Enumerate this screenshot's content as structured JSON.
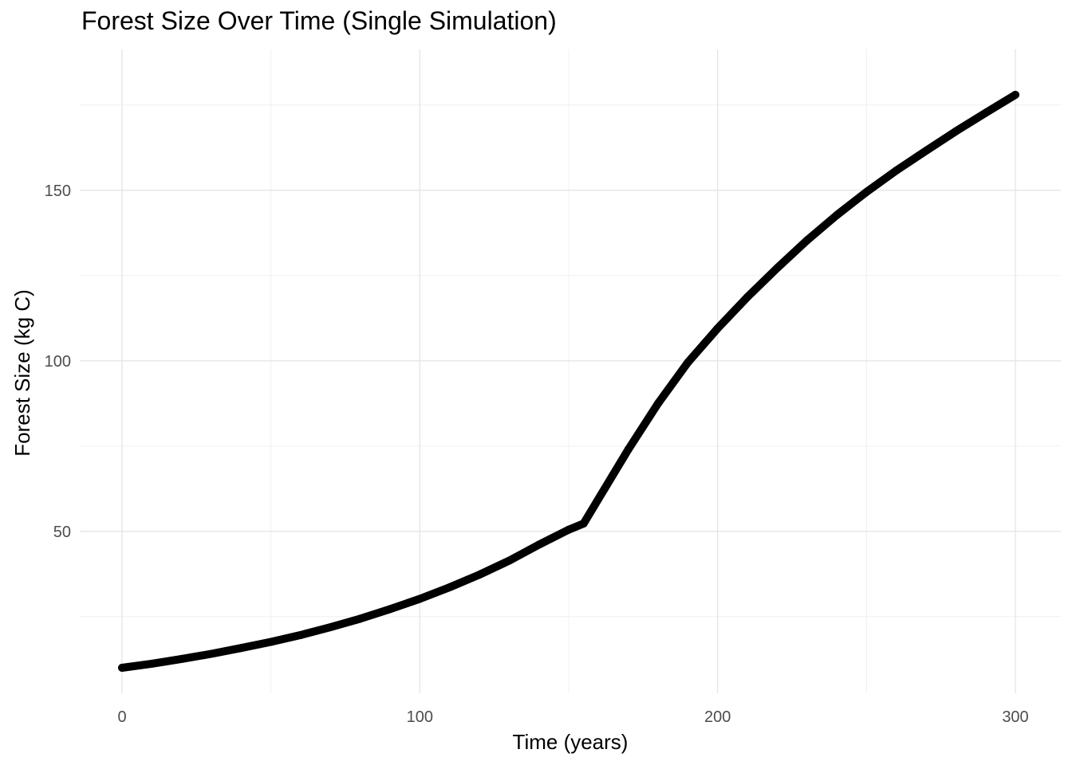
{
  "chart_data": {
    "type": "line",
    "title": "Forest Size Over Time (Single Simulation)",
    "xlabel": "Time (years)",
    "ylabel": "Forest Size (kg C)",
    "xlim": [
      0,
      300
    ],
    "ylim": [
      10,
      180
    ],
    "x_ticks": [
      0,
      100,
      200,
      300
    ],
    "y_ticks": [
      50,
      100,
      150
    ],
    "grid": true,
    "legend": "none",
    "line_color": "#000000",
    "series": [
      {
        "x": [
          0,
          10,
          20,
          30,
          40,
          50,
          60,
          70,
          80,
          90,
          100,
          110,
          120,
          130,
          140,
          150,
          155,
          160,
          170,
          180,
          190,
          200,
          210,
          220,
          230,
          240,
          250,
          260,
          270,
          280,
          290,
          300
        ],
        "y": [
          10,
          11.2,
          12.6,
          14.1,
          15.8,
          17.6,
          19.6,
          21.9,
          24.4,
          27.2,
          30.2,
          33.6,
          37.3,
          41.4,
          46.1,
          50.5,
          52.3,
          59.5,
          74.0,
          87.5,
          99.5,
          109.5,
          118.7,
          127.2,
          135.3,
          142.7,
          149.5,
          155.8,
          161.6,
          167.3,
          172.7,
          178.0
        ]
      }
    ]
  }
}
